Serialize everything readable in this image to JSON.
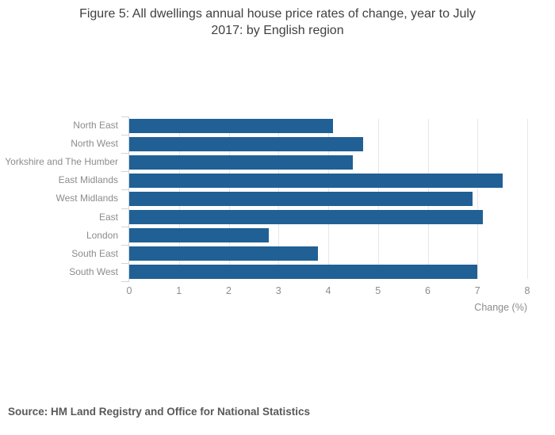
{
  "page": {
    "title_lines": [
      "Figure 5: All dwellings annual house price rates of change, year to July",
      "2017: by English region"
    ],
    "source": "Source: HM Land Registry and Office for National Statistics"
  },
  "chart_data": {
    "type": "bar",
    "orientation": "horizontal",
    "title": "Figure 5: All dwellings annual house price rates of change, year to July 2017: by English region",
    "categories": [
      "North East",
      "North West",
      "Yorkshire and The Humber",
      "East Midlands",
      "West Midlands",
      "East",
      "London",
      "South East",
      "South West"
    ],
    "values": [
      4.1,
      4.7,
      4.5,
      7.5,
      6.9,
      7.1,
      2.8,
      3.8,
      7.0
    ],
    "xlabel": "Change (%)",
    "xlim": [
      0,
      8
    ],
    "xticks": [
      0,
      1,
      2,
      3,
      4,
      5,
      6,
      7,
      8
    ],
    "grid": "vertical-gridlines-on",
    "legend": "none",
    "bar_color": "#206095",
    "axis_color": "#c9d6e3",
    "gridline_color": "#e7e7e7",
    "tick_label_color": "#8c8c8c"
  }
}
